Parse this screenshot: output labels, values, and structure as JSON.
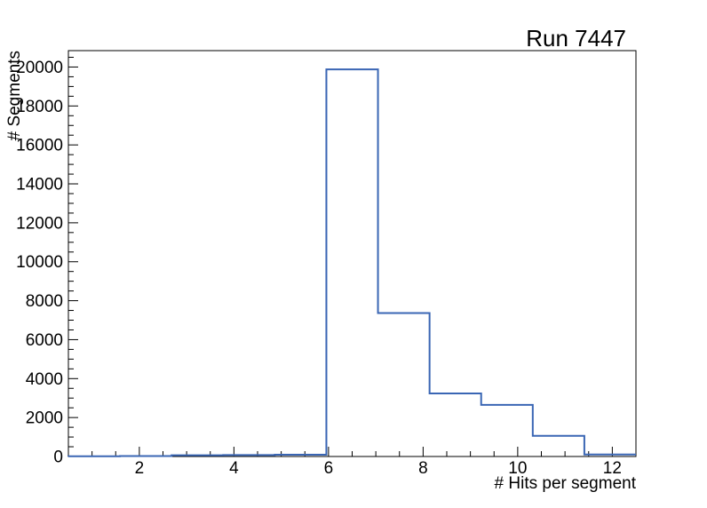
{
  "chart_data": {
    "type": "bar",
    "subtype": "step-histogram",
    "title": "Run 7447",
    "xlabel": "# Hits per segment",
    "ylabel": "# Segments",
    "xlim": [
      0.5,
      12.5
    ],
    "ylim": [
      0,
      20842
    ],
    "bin_edges": [
      0.5,
      1.5909,
      2.6818,
      3.7727,
      4.8636,
      5.9545,
      7.0455,
      8.1364,
      9.2273,
      10.3182,
      11.4091,
      12.5
    ],
    "values": [
      10,
      20,
      60,
      75,
      90,
      19880,
      7365,
      3240,
      2650,
      1060,
      100
    ],
    "x_major_ticks": [
      2,
      4,
      6,
      8,
      10,
      12
    ],
    "x_tick_labels": [
      "2",
      "4",
      "6",
      "8",
      "10",
      "12"
    ],
    "x_minor_step": 0.5,
    "y_major_ticks": [
      0,
      2000,
      4000,
      6000,
      8000,
      10000,
      12000,
      14000,
      16000,
      18000,
      20000
    ],
    "y_tick_labels": [
      "0",
      "2000",
      "4000",
      "6000",
      "8000",
      "10000",
      "12000",
      "14000",
      "16000",
      "18000",
      "20000"
    ],
    "y_minor_step": 500,
    "grid": false,
    "legend_position": "none",
    "line_color": "#3a66b4",
    "axis_color": "#000000",
    "background_color": "#ffffff"
  }
}
